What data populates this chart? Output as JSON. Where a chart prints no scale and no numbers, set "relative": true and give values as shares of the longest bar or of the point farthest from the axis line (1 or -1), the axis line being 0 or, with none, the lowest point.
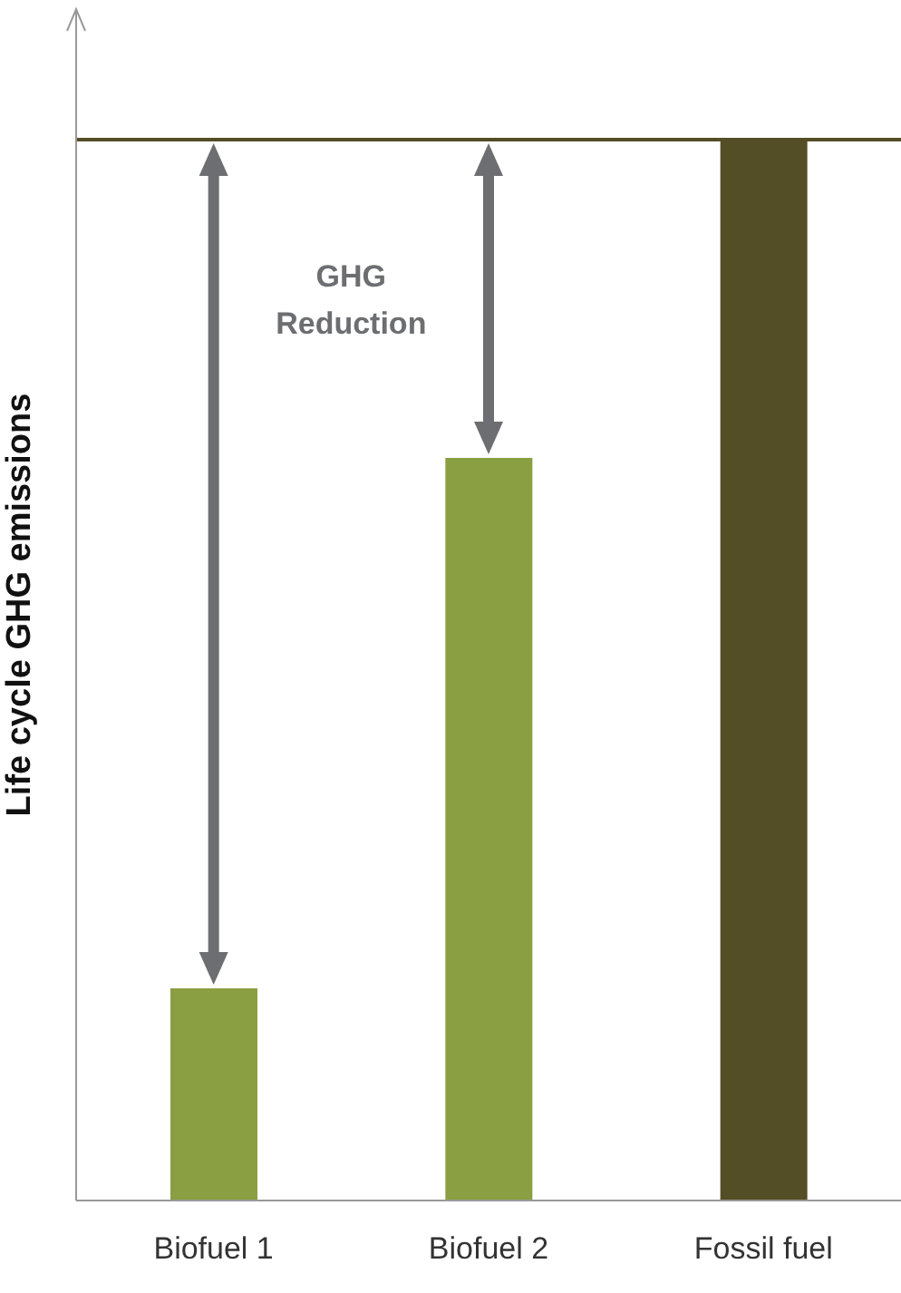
{
  "chart_data": {
    "type": "bar",
    "relative": true,
    "ylabel": "Life cycle GHG emissions",
    "categories": [
      "Biofuel 1",
      "Biofuel 2",
      "Fossil fuel"
    ],
    "values": [
      0.2,
      0.7,
      1
    ],
    "colors": [
      "#8a9e42",
      "#8a9e42",
      "#544e26"
    ],
    "ref_lines": [
      {
        "axis": "y",
        "value": 1,
        "color": "#544e26"
      }
    ],
    "annotations": [
      "GHG Reduction"
    ],
    "grid": false,
    "legend": false
  }
}
